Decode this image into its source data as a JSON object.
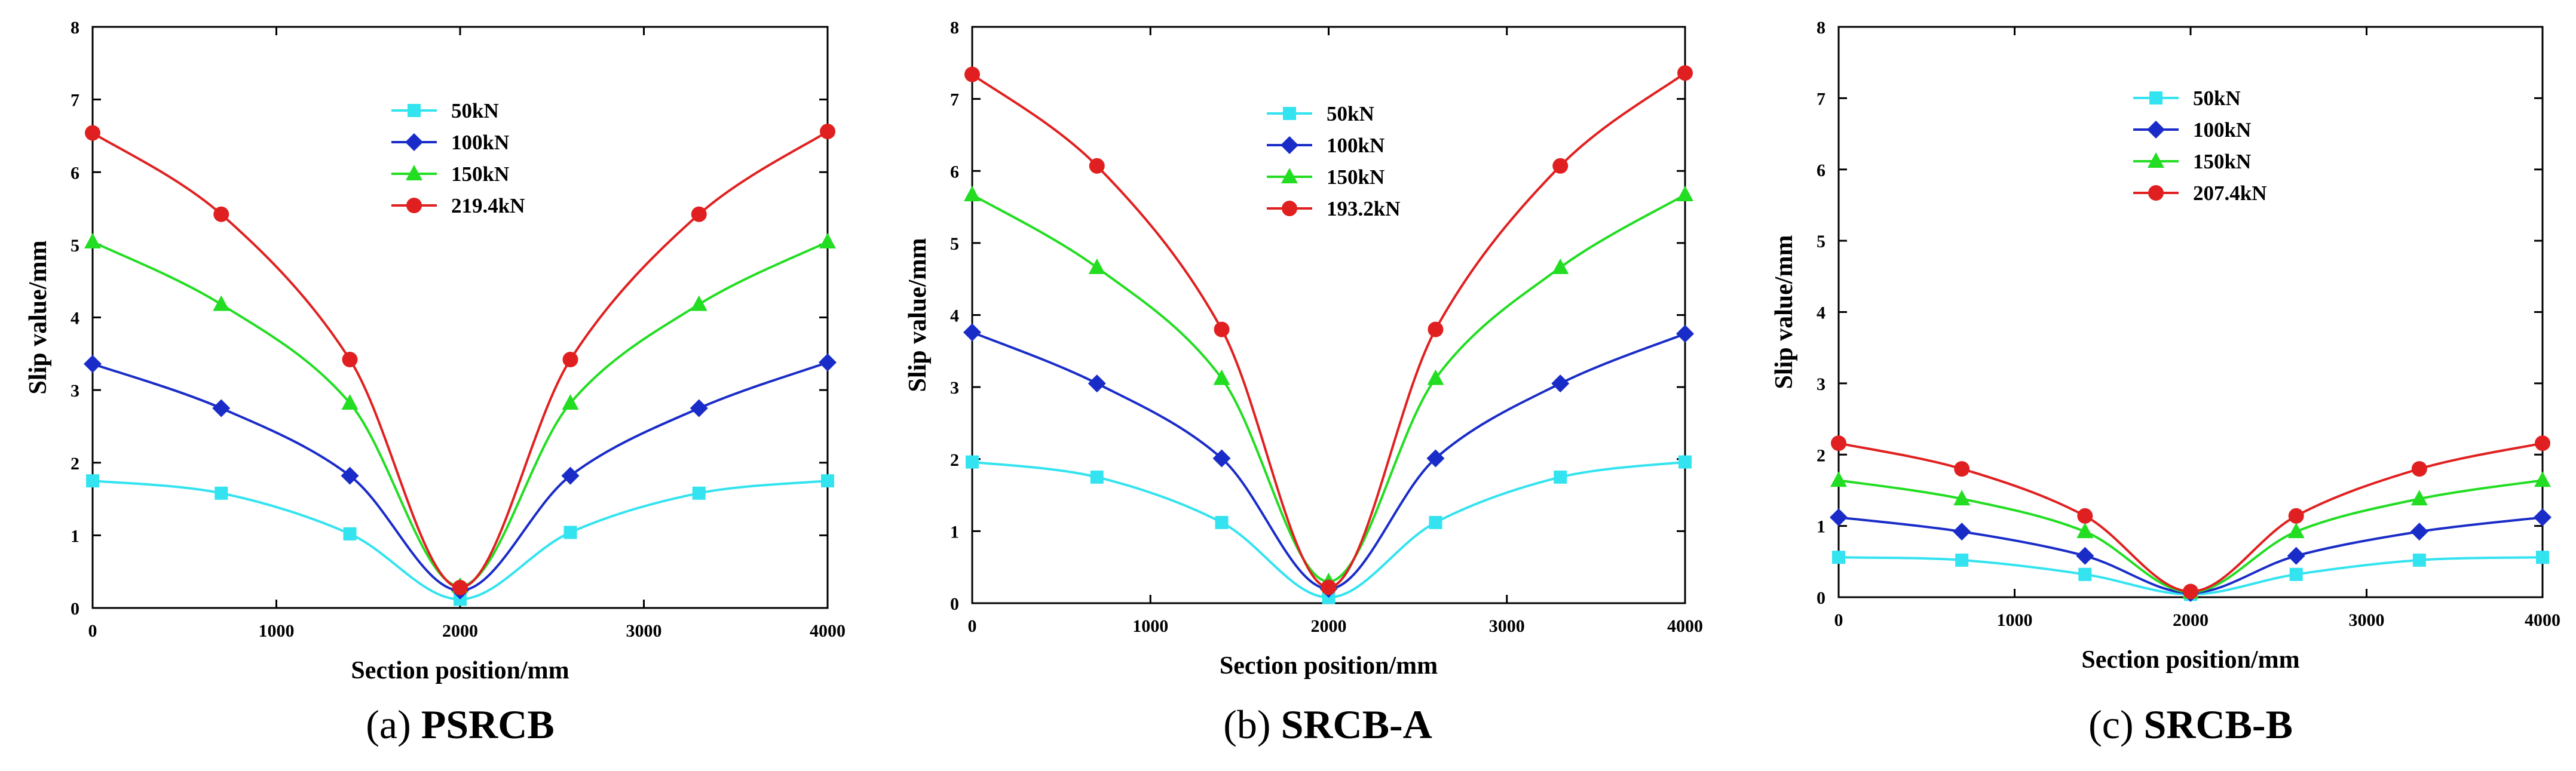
{
  "chart_data": [
    {
      "type": "line",
      "caption_letter": "(a)",
      "caption_name": "PSRCB",
      "xlabel": "Section position/mm",
      "ylabel": "Slip value/mm",
      "xlim": [
        0,
        4000
      ],
      "ylim": [
        0,
        8
      ],
      "xticks": [
        0,
        1000,
        2000,
        3000,
        4000
      ],
      "yticks": [
        0,
        1,
        2,
        3,
        4,
        5,
        6,
        7,
        8
      ],
      "x": [
        0,
        700,
        1400,
        2000,
        2600,
        3300,
        4000
      ],
      "series": [
        {
          "name": "50kN",
          "marker": "square",
          "color": "#33e3f0",
          "values": [
            1.75,
            1.58,
            1.02,
            0.12,
            1.04,
            1.58,
            1.75
          ]
        },
        {
          "name": "100kN",
          "marker": "diamond",
          "color": "#1a2cc8",
          "values": [
            3.36,
            2.75,
            1.82,
            0.24,
            1.82,
            2.75,
            3.38
          ]
        },
        {
          "name": "150kN",
          "marker": "triangle",
          "color": "#22dd22",
          "values": [
            5.04,
            4.18,
            2.82,
            0.3,
            2.82,
            4.18,
            5.04
          ]
        },
        {
          "name": "219.4kN",
          "marker": "circle",
          "color": "#e02020",
          "values": [
            6.54,
            5.42,
            3.42,
            0.28,
            3.42,
            5.42,
            6.56
          ]
        }
      ]
    },
    {
      "type": "line",
      "caption_letter": "(b)",
      "caption_name": "SRCB-A",
      "xlabel": "Section position/mm",
      "ylabel": "Slip value/mm",
      "xlim": [
        0,
        4000
      ],
      "ylim": [
        0,
        8
      ],
      "xticks": [
        0,
        1000,
        2000,
        3000,
        4000
      ],
      "yticks": [
        0,
        1,
        2,
        3,
        4,
        5,
        6,
        7,
        8
      ],
      "x": [
        0,
        700,
        1400,
        2000,
        2600,
        3300,
        4000
      ],
      "series": [
        {
          "name": "50kN",
          "marker": "square",
          "color": "#33e3f0",
          "values": [
            1.96,
            1.75,
            1.12,
            0.08,
            1.12,
            1.75,
            1.96
          ]
        },
        {
          "name": "100kN",
          "marker": "diamond",
          "color": "#1a2cc8",
          "values": [
            3.76,
            3.05,
            2.01,
            0.2,
            2.01,
            3.05,
            3.74
          ]
        },
        {
          "name": "150kN",
          "marker": "triangle",
          "color": "#22dd22",
          "values": [
            5.67,
            4.66,
            3.12,
            0.3,
            3.12,
            4.66,
            5.67
          ]
        },
        {
          "name": "193.2kN",
          "marker": "circle",
          "color": "#e02020",
          "values": [
            7.34,
            6.07,
            3.8,
            0.22,
            3.8,
            6.07,
            7.36
          ]
        }
      ]
    },
    {
      "type": "line",
      "caption_letter": "(c)",
      "caption_name": "SRCB-B",
      "xlabel": "Section position/mm",
      "ylabel": "Slip value/mm",
      "xlim": [
        0,
        4000
      ],
      "ylim": [
        0,
        8
      ],
      "xticks": [
        0,
        1000,
        2000,
        3000,
        4000
      ],
      "yticks": [
        0,
        1,
        2,
        3,
        4,
        5,
        6,
        7,
        8
      ],
      "x": [
        0,
        700,
        1400,
        2000,
        2600,
        3300,
        4000
      ],
      "series": [
        {
          "name": "50kN",
          "marker": "square",
          "color": "#33e3f0",
          "values": [
            0.56,
            0.52,
            0.32,
            0.04,
            0.32,
            0.52,
            0.56
          ]
        },
        {
          "name": "100kN",
          "marker": "diamond",
          "color": "#1a2cc8",
          "values": [
            1.12,
            0.92,
            0.58,
            0.06,
            0.58,
            0.92,
            1.12
          ]
        },
        {
          "name": "150kN",
          "marker": "triangle",
          "color": "#22dd22",
          "values": [
            1.64,
            1.38,
            0.92,
            0.07,
            0.92,
            1.38,
            1.64
          ]
        },
        {
          "name": "207.4kN",
          "marker": "circle",
          "color": "#e02020",
          "values": [
            2.16,
            1.8,
            1.14,
            0.08,
            1.14,
            1.8,
            2.16
          ]
        }
      ]
    }
  ]
}
